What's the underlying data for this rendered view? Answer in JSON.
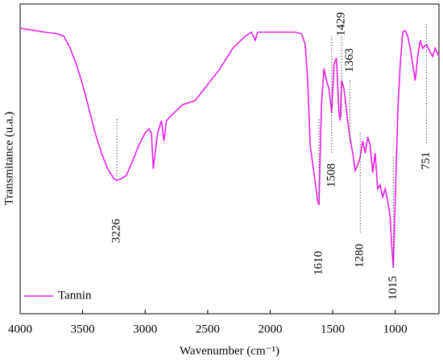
{
  "chart_data": {
    "type": "line",
    "x_label": "Wavenumber (cm⁻¹)",
    "y_label": "Transmitance (u.a.)",
    "xlim": [
      4000,
      650
    ],
    "ylim": [
      0,
      100
    ],
    "xticks": [
      4000,
      3500,
      3000,
      2500,
      2000,
      1500,
      1000
    ],
    "legend": "lower left",
    "peaks": [
      3226,
      1610,
      1508,
      1429,
      1363,
      1280,
      1015,
      751
    ],
    "series": [
      {
        "name": "Tannin",
        "color": "#e81ee8",
        "x": [
          4000,
          3800,
          3700,
          3650,
          3600,
          3550,
          3500,
          3450,
          3400,
          3350,
          3300,
          3250,
          3226,
          3200,
          3150,
          3100,
          3050,
          3000,
          2970,
          2950,
          2935,
          2920,
          2900,
          2870,
          2850,
          2830,
          2800,
          2700,
          2600,
          2500,
          2400,
          2300,
          2200,
          2150,
          2120,
          2100,
          2000,
          1900,
          1800,
          1750,
          1720,
          1700,
          1680,
          1650,
          1620,
          1610,
          1590,
          1570,
          1550,
          1530,
          1508,
          1490,
          1470,
          1450,
          1440,
          1429,
          1410,
          1380,
          1363,
          1340,
          1320,
          1300,
          1280,
          1260,
          1240,
          1220,
          1200,
          1180,
          1160,
          1140,
          1120,
          1100,
          1080,
          1060,
          1040,
          1030,
          1015,
          1000,
          980,
          960,
          940,
          920,
          900,
          880,
          860,
          840,
          820,
          800,
          780,
          751,
          720,
          700,
          680,
          650
        ],
        "values": [
          92.2,
          90.9,
          90.4,
          89.6,
          85.7,
          80.5,
          74,
          66.2,
          58.4,
          51.9,
          46.8,
          43.6,
          43.1,
          43.4,
          44.7,
          49.4,
          54.5,
          58.4,
          59.7,
          58.4,
          46.8,
          51.9,
          58.4,
          62.3,
          55.8,
          62.3,
          63.6,
          67.5,
          68.8,
          74,
          79.2,
          85.7,
          89.6,
          90.9,
          88.3,
          90.9,
          90.9,
          90.9,
          90.9,
          90.4,
          87,
          75.3,
          54.5,
          45.5,
          36.4,
          35.1,
          67.5,
          79.2,
          75.3,
          72.7,
          64.9,
          80.5,
          82.6,
          64.9,
          62.3,
          75.3,
          72.7,
          62.3,
          57.1,
          51.9,
          46.2,
          48.1,
          50.6,
          55.8,
          51.9,
          57.1,
          54.5,
          45.5,
          51.9,
          40.3,
          41.6,
          37.7,
          40.3,
          36.4,
          31.2,
          23.4,
          14.8,
          36.4,
          64.9,
          80.5,
          90.9,
          91.4,
          89.6,
          85.7,
          80.5,
          75.3,
          83.1,
          88.3,
          85.7,
          87,
          84.4,
          83.1,
          85.7,
          83.1
        ]
      }
    ]
  }
}
